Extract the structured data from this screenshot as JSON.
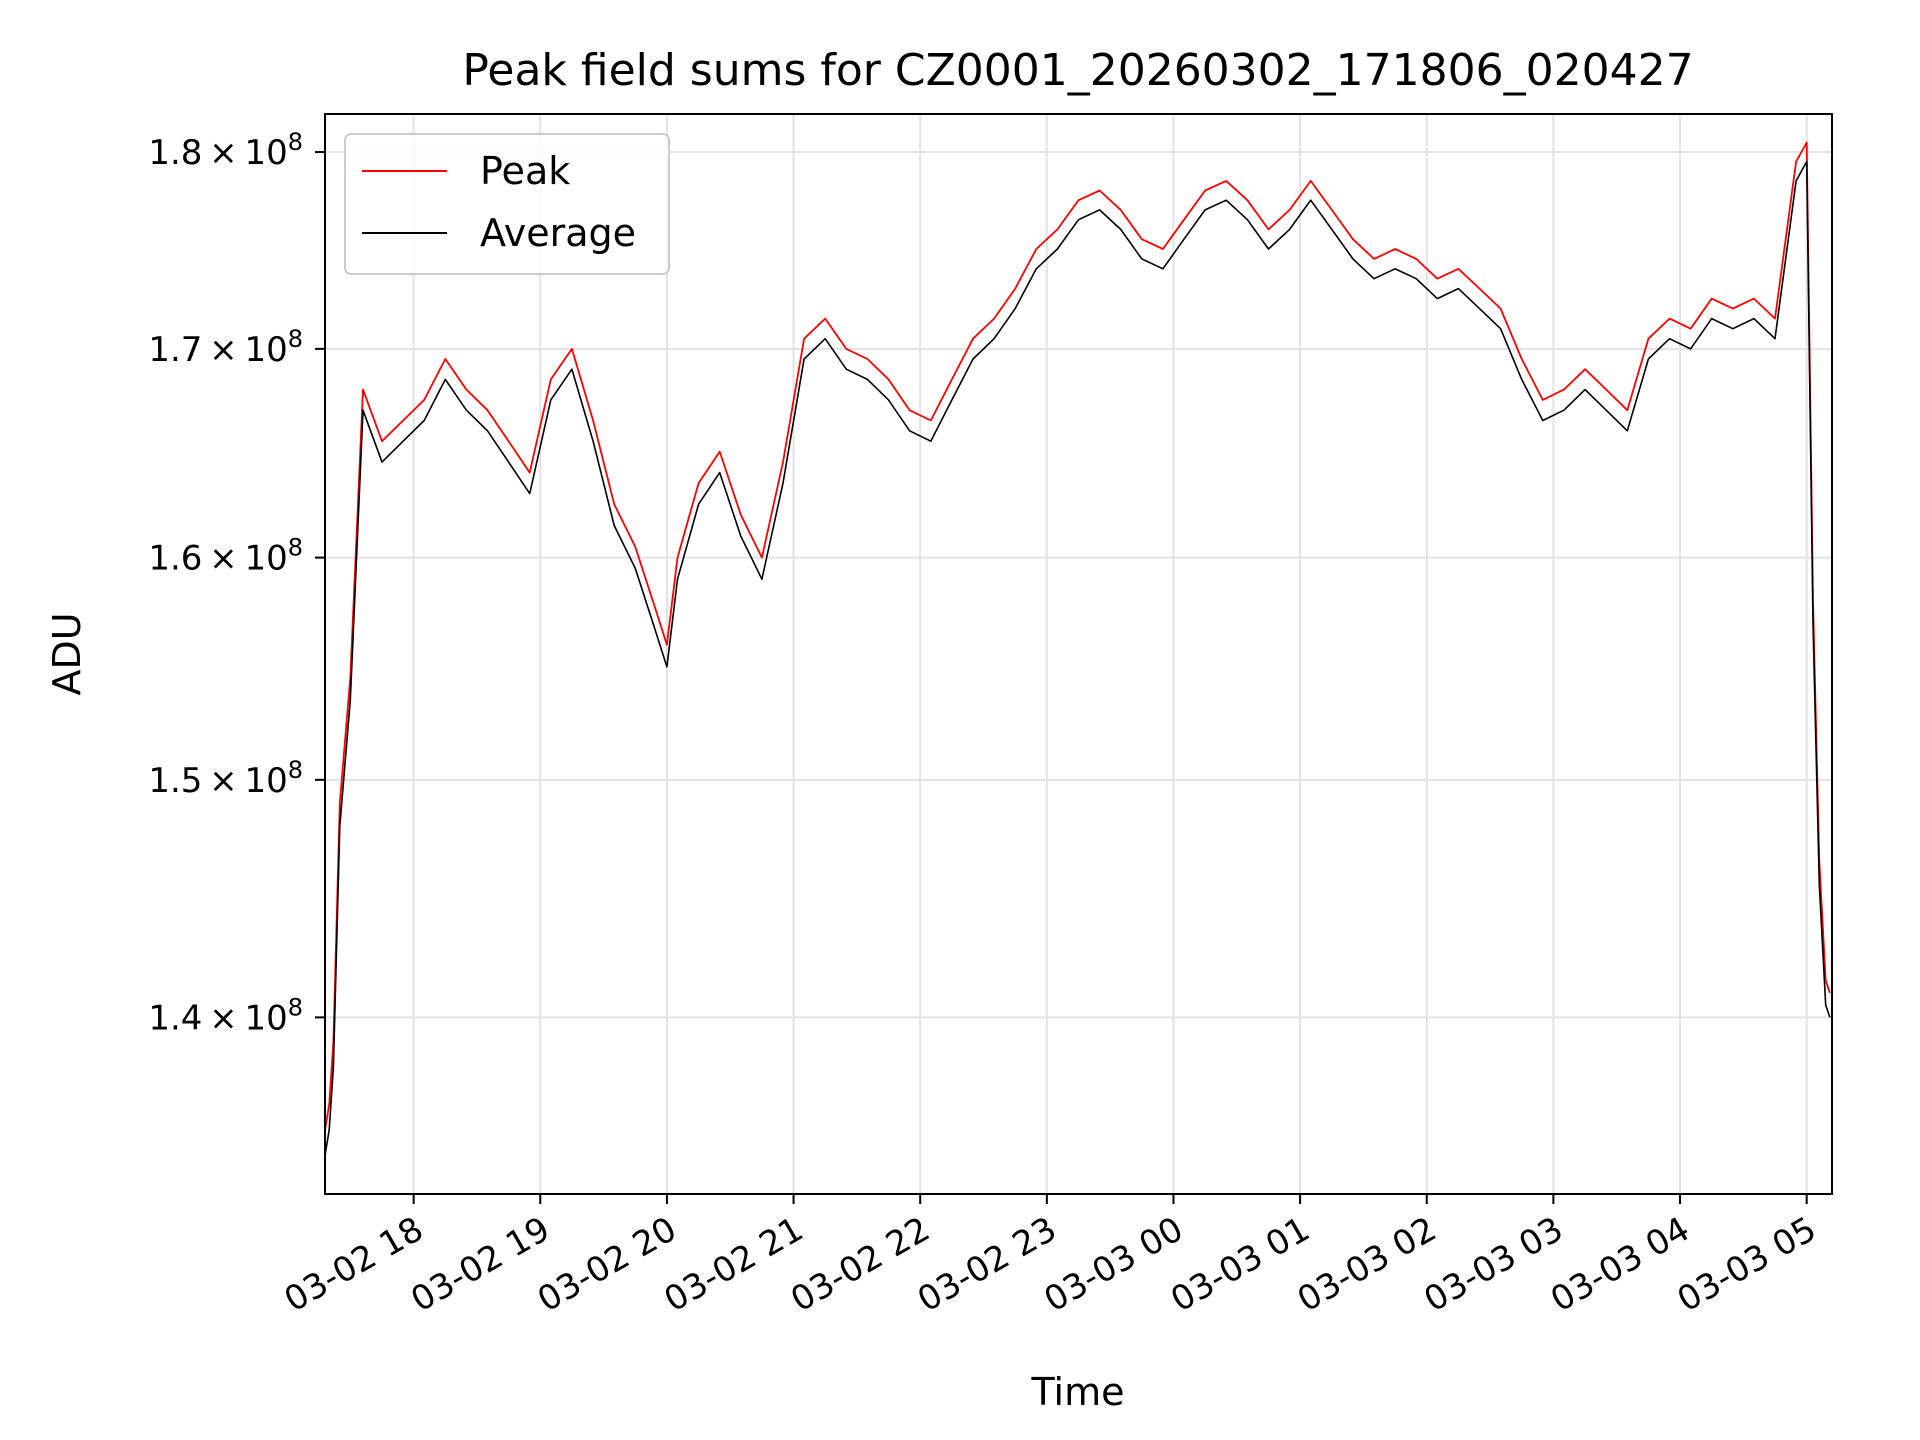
{
  "chart_data": {
    "type": "line",
    "title": "Peak field sums for CZ0001_20260302_171806_020427",
    "xlabel": "Time",
    "ylabel": "ADU",
    "y_scale": "log",
    "x_ticks": [
      "03-02 18",
      "03-02 19",
      "03-02 20",
      "03-02 21",
      "03-02 22",
      "03-02 23",
      "03-03 00",
      "03-03 01",
      "03-03 02",
      "03-03 03",
      "03-03 04",
      "03-03 05"
    ],
    "x_tick_values": [
      "2026-03-02 18:00",
      "2026-03-02 19:00",
      "2026-03-02 20:00",
      "2026-03-02 21:00",
      "2026-03-02 22:00",
      "2026-03-02 23:00",
      "2026-03-03 00:00",
      "2026-03-03 01:00",
      "2026-03-03 02:00",
      "2026-03-03 03:00",
      "2026-03-03 04:00",
      "2026-03-03 05:00"
    ],
    "y_ticks": [
      {
        "value": 140000000,
        "mantissa": "1.4",
        "base": "10",
        "exp": "8"
      },
      {
        "value": 150000000,
        "mantissa": "1.5",
        "base": "10",
        "exp": "8"
      },
      {
        "value": 160000000,
        "mantissa": "1.6",
        "base": "10",
        "exp": "8"
      },
      {
        "value": 170000000,
        "mantissa": "1.7",
        "base": "10",
        "exp": "8"
      },
      {
        "value": 180000000,
        "mantissa": "1.8",
        "base": "10",
        "exp": "8"
      }
    ],
    "xlim": [
      "2026-03-02 17:18",
      "2026-03-03 05:12"
    ],
    "ylim": [
      133000000,
      182000000
    ],
    "grid": true,
    "legend_position": "upper-left",
    "series": [
      {
        "name": "Peak",
        "color": "#ff0000",
        "x": [
          "2026-03-02 17:18",
          "2026-03-02 17:20",
          "2026-03-02 17:22",
          "2026-03-02 17:25",
          "2026-03-02 17:30",
          "2026-03-02 17:36",
          "2026-03-02 17:45",
          "2026-03-02 17:55",
          "2026-03-02 18:05",
          "2026-03-02 18:15",
          "2026-03-02 18:25",
          "2026-03-02 18:35",
          "2026-03-02 18:45",
          "2026-03-02 18:55",
          "2026-03-02 19:05",
          "2026-03-02 19:15",
          "2026-03-02 19:25",
          "2026-03-02 19:35",
          "2026-03-02 19:45",
          "2026-03-02 19:55",
          "2026-03-02 20:00",
          "2026-03-02 20:05",
          "2026-03-02 20:15",
          "2026-03-02 20:25",
          "2026-03-02 20:35",
          "2026-03-02 20:45",
          "2026-03-02 20:55",
          "2026-03-02 21:05",
          "2026-03-02 21:15",
          "2026-03-02 21:25",
          "2026-03-02 21:35",
          "2026-03-02 21:45",
          "2026-03-02 21:55",
          "2026-03-02 22:05",
          "2026-03-02 22:15",
          "2026-03-02 22:25",
          "2026-03-02 22:35",
          "2026-03-02 22:45",
          "2026-03-02 22:55",
          "2026-03-02 23:05",
          "2026-03-02 23:15",
          "2026-03-02 23:25",
          "2026-03-02 23:35",
          "2026-03-02 23:45",
          "2026-03-02 23:55",
          "2026-03-03 00:05",
          "2026-03-03 00:15",
          "2026-03-03 00:25",
          "2026-03-03 00:35",
          "2026-03-03 00:45",
          "2026-03-03 00:55",
          "2026-03-03 01:05",
          "2026-03-03 01:15",
          "2026-03-03 01:25",
          "2026-03-03 01:35",
          "2026-03-03 01:45",
          "2026-03-03 01:55",
          "2026-03-03 02:05",
          "2026-03-03 02:15",
          "2026-03-03 02:25",
          "2026-03-03 02:35",
          "2026-03-03 02:45",
          "2026-03-03 02:55",
          "2026-03-03 03:05",
          "2026-03-03 03:15",
          "2026-03-03 03:25",
          "2026-03-03 03:35",
          "2026-03-03 03:45",
          "2026-03-03 03:55",
          "2026-03-03 04:05",
          "2026-03-03 04:15",
          "2026-03-03 04:25",
          "2026-03-03 04:35",
          "2026-03-03 04:45",
          "2026-03-03 04:55",
          "2026-03-03 05:00",
          "2026-03-03 05:03",
          "2026-03-03 05:06",
          "2026-03-03 05:09",
          "2026-03-03 05:11"
        ],
        "values": [
          135500000,
          136500000,
          139000000,
          149000000,
          154500000,
          168000000,
          165500000,
          166500000,
          167500000,
          169500000,
          168000000,
          167000000,
          165500000,
          164000000,
          168500000,
          170000000,
          166500000,
          162500000,
          160500000,
          157500000,
          156000000,
          160000000,
          163500000,
          165000000,
          162000000,
          160000000,
          164500000,
          170500000,
          171500000,
          170000000,
          169500000,
          168500000,
          167000000,
          166500000,
          168500000,
          170500000,
          171500000,
          173000000,
          175000000,
          176000000,
          177500000,
          178000000,
          177000000,
          175500000,
          175000000,
          176500000,
          178000000,
          178500000,
          177500000,
          176000000,
          177000000,
          178500000,
          177000000,
          175500000,
          174500000,
          175000000,
          174500000,
          173500000,
          174000000,
          173000000,
          172000000,
          169500000,
          167500000,
          168000000,
          169000000,
          168000000,
          167000000,
          170500000,
          171500000,
          171000000,
          172500000,
          172000000,
          172500000,
          171500000,
          179500000,
          180500000,
          158000000,
          146500000,
          141500000,
          141000000
        ]
      },
      {
        "name": "Average",
        "color": "#000000",
        "x": [
          "2026-03-02 17:18",
          "2026-03-02 17:20",
          "2026-03-02 17:22",
          "2026-03-02 17:25",
          "2026-03-02 17:30",
          "2026-03-02 17:36",
          "2026-03-02 17:45",
          "2026-03-02 17:55",
          "2026-03-02 18:05",
          "2026-03-02 18:15",
          "2026-03-02 18:25",
          "2026-03-02 18:35",
          "2026-03-02 18:45",
          "2026-03-02 18:55",
          "2026-03-02 19:05",
          "2026-03-02 19:15",
          "2026-03-02 19:25",
          "2026-03-02 19:35",
          "2026-03-02 19:45",
          "2026-03-02 19:55",
          "2026-03-02 20:00",
          "2026-03-02 20:05",
          "2026-03-02 20:15",
          "2026-03-02 20:25",
          "2026-03-02 20:35",
          "2026-03-02 20:45",
          "2026-03-02 20:55",
          "2026-03-02 21:05",
          "2026-03-02 21:15",
          "2026-03-02 21:25",
          "2026-03-02 21:35",
          "2026-03-02 21:45",
          "2026-03-02 21:55",
          "2026-03-02 22:05",
          "2026-03-02 22:15",
          "2026-03-02 22:25",
          "2026-03-02 22:35",
          "2026-03-02 22:45",
          "2026-03-02 22:55",
          "2026-03-02 23:05",
          "2026-03-02 23:15",
          "2026-03-02 23:25",
          "2026-03-02 23:35",
          "2026-03-02 23:45",
          "2026-03-02 23:55",
          "2026-03-03 00:05",
          "2026-03-03 00:15",
          "2026-03-03 00:25",
          "2026-03-03 00:35",
          "2026-03-03 00:45",
          "2026-03-03 00:55",
          "2026-03-03 01:05",
          "2026-03-03 01:15",
          "2026-03-03 01:25",
          "2026-03-03 01:35",
          "2026-03-03 01:45",
          "2026-03-03 01:55",
          "2026-03-03 02:05",
          "2026-03-03 02:15",
          "2026-03-03 02:25",
          "2026-03-03 02:35",
          "2026-03-03 02:45",
          "2026-03-03 02:55",
          "2026-03-03 03:05",
          "2026-03-03 03:15",
          "2026-03-03 03:25",
          "2026-03-03 03:35",
          "2026-03-03 03:45",
          "2026-03-03 03:55",
          "2026-03-03 04:05",
          "2026-03-03 04:15",
          "2026-03-03 04:25",
          "2026-03-03 04:35",
          "2026-03-03 04:45",
          "2026-03-03 04:55",
          "2026-03-03 05:00",
          "2026-03-03 05:03",
          "2026-03-03 05:06",
          "2026-03-03 05:09",
          "2026-03-03 05:11"
        ],
        "values": [
          134500000,
          135500000,
          138000000,
          148000000,
          153500000,
          167000000,
          164500000,
          165500000,
          166500000,
          168500000,
          167000000,
          166000000,
          164500000,
          163000000,
          167500000,
          169000000,
          165500000,
          161500000,
          159500000,
          156500000,
          155000000,
          159000000,
          162500000,
          164000000,
          161000000,
          159000000,
          163500000,
          169500000,
          170500000,
          169000000,
          168500000,
          167500000,
          166000000,
          165500000,
          167500000,
          169500000,
          170500000,
          172000000,
          174000000,
          175000000,
          176500000,
          177000000,
          176000000,
          174500000,
          174000000,
          175500000,
          177000000,
          177500000,
          176500000,
          175000000,
          176000000,
          177500000,
          176000000,
          174500000,
          173500000,
          174000000,
          173500000,
          172500000,
          173000000,
          172000000,
          171000000,
          168500000,
          166500000,
          167000000,
          168000000,
          167000000,
          166000000,
          169500000,
          170500000,
          170000000,
          171500000,
          171000000,
          171500000,
          170500000,
          178500000,
          179500000,
          157000000,
          145500000,
          140500000,
          140000000
        ]
      }
    ]
  }
}
